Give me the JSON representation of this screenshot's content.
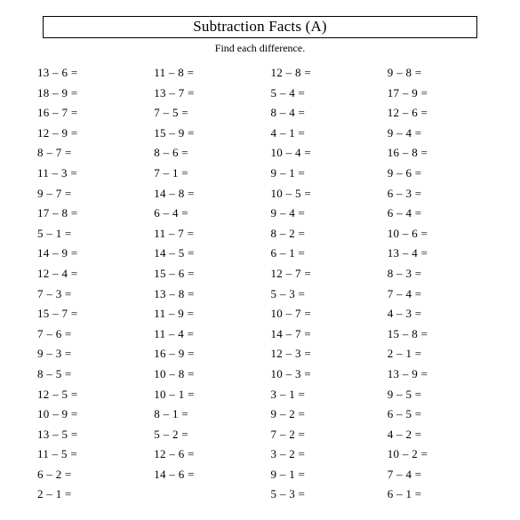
{
  "title": "Subtraction Facts (A)",
  "subtitle": "Find each difference.",
  "columns": [
    [
      [
        13,
        6
      ],
      [
        18,
        9
      ],
      [
        16,
        7
      ],
      [
        12,
        9
      ],
      [
        8,
        7
      ],
      [
        11,
        3
      ],
      [
        9,
        7
      ],
      [
        17,
        8
      ],
      [
        5,
        1
      ],
      [
        14,
        9
      ],
      [
        12,
        4
      ],
      [
        7,
        3
      ],
      [
        15,
        7
      ],
      [
        7,
        6
      ],
      [
        9,
        3
      ],
      [
        8,
        5
      ],
      [
        12,
        5
      ],
      [
        10,
        9
      ],
      [
        13,
        5
      ],
      [
        11,
        5
      ],
      [
        6,
        2
      ],
      [
        2,
        1
      ]
    ],
    [
      [
        11,
        8
      ],
      [
        13,
        7
      ],
      [
        7,
        5
      ],
      [
        15,
        9
      ],
      [
        8,
        6
      ],
      [
        7,
        1
      ],
      [
        14,
        8
      ],
      [
        6,
        4
      ],
      [
        11,
        7
      ],
      [
        14,
        5
      ],
      [
        15,
        6
      ],
      [
        13,
        8
      ],
      [
        11,
        9
      ],
      [
        11,
        4
      ],
      [
        16,
        9
      ],
      [
        10,
        8
      ],
      [
        10,
        1
      ],
      [
        8,
        1
      ],
      [
        5,
        2
      ],
      [
        12,
        6
      ],
      [
        14,
        6
      ]
    ],
    [
      [
        12,
        8
      ],
      [
        5,
        4
      ],
      [
        8,
        4
      ],
      [
        4,
        1
      ],
      [
        10,
        4
      ],
      [
        9,
        1
      ],
      [
        10,
        5
      ],
      [
        9,
        4
      ],
      [
        8,
        2
      ],
      [
        6,
        1
      ],
      [
        12,
        7
      ],
      [
        5,
        3
      ],
      [
        10,
        7
      ],
      [
        14,
        7
      ],
      [
        12,
        3
      ],
      [
        10,
        3
      ],
      [
        3,
        1
      ],
      [
        9,
        2
      ],
      [
        7,
        2
      ],
      [
        3,
        2
      ],
      [
        9,
        1
      ],
      [
        5,
        3
      ]
    ],
    [
      [
        9,
        8
      ],
      [
        17,
        9
      ],
      [
        12,
        6
      ],
      [
        9,
        4
      ],
      [
        16,
        8
      ],
      [
        9,
        6
      ],
      [
        6,
        3
      ],
      [
        6,
        4
      ],
      [
        10,
        6
      ],
      [
        13,
        4
      ],
      [
        8,
        3
      ],
      [
        7,
        4
      ],
      [
        4,
        3
      ],
      [
        15,
        8
      ],
      [
        2,
        1
      ],
      [
        13,
        9
      ],
      [
        9,
        5
      ],
      [
        6,
        5
      ],
      [
        4,
        2
      ],
      [
        10,
        2
      ],
      [
        7,
        4
      ],
      [
        6,
        1
      ]
    ]
  ]
}
